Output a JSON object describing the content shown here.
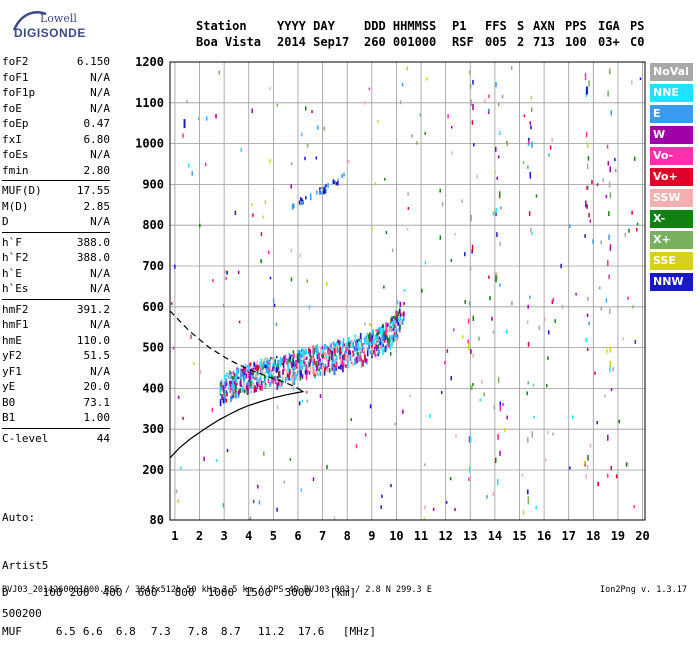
{
  "logo": {
    "line1": "Lowell",
    "line2": "DIGISONDE"
  },
  "header": {
    "row1": [
      "Station",
      "YYYY DAY",
      "DDD HHMMSS",
      "P1",
      "FFS",
      "S",
      "AXN",
      "PPS",
      "IGA",
      "PS"
    ],
    "row2": [
      "Boa Vista",
      "2014 Sep17",
      "260 001000",
      "RSF",
      "005",
      "2",
      "713",
      "100",
      "03+",
      "C0"
    ]
  },
  "params": {
    "group1": [
      {
        "name": "foF2",
        "value": "6.150"
      },
      {
        "name": "foF1",
        "value": "N/A"
      },
      {
        "name": "foF1p",
        "value": "N/A"
      },
      {
        "name": "foE",
        "value": "N/A"
      },
      {
        "name": "foEp",
        "value": "0.47"
      },
      {
        "name": "fxI",
        "value": "6.80"
      },
      {
        "name": "foEs",
        "value": "N/A"
      },
      {
        "name": "fmin",
        "value": "2.80"
      }
    ],
    "group2": [
      {
        "name": "MUF(D)",
        "value": "17.55"
      },
      {
        "name": "M(D)",
        "value": "2.85"
      },
      {
        "name": "D",
        "value": "N/A"
      }
    ],
    "group3": [
      {
        "name": "h`F",
        "value": "388.0"
      },
      {
        "name": "h`F2",
        "value": "388.0"
      },
      {
        "name": "h`E",
        "value": "N/A"
      },
      {
        "name": "h`Es",
        "value": "N/A"
      }
    ],
    "group4": [
      {
        "name": "hmF2",
        "value": "391.2"
      },
      {
        "name": "hmF1",
        "value": "N/A"
      },
      {
        "name": "hmE",
        "value": "110.0"
      },
      {
        "name": "yF2",
        "value": "51.5"
      },
      {
        "name": "yF1",
        "value": "N/A"
      },
      {
        "name": "yE",
        "value": "20.0"
      },
      {
        "name": "B0",
        "value": "73.1"
      },
      {
        "name": "B1",
        "value": "1.00"
      }
    ],
    "group5": [
      {
        "name": "C-level",
        "value": "44"
      }
    ]
  },
  "auto": [
    "Auto:",
    "Artist5",
    "500200"
  ],
  "legend": [
    {
      "label": "NoVal",
      "color": "#a8a8a8"
    },
    {
      "label": "NNE",
      "color": "#22e0ff"
    },
    {
      "label": "E",
      "color": "#3a9cf0"
    },
    {
      "label": "W",
      "color": "#a000a8"
    },
    {
      "label": "Vo-",
      "color": "#ff2fae"
    },
    {
      "label": "Vo+",
      "color": "#e0002a"
    },
    {
      "label": "SSW",
      "color": "#f4b0b0"
    },
    {
      "label": "X-",
      "color": "#108010"
    },
    {
      "label": "X+",
      "color": "#78b060"
    },
    {
      "label": "SSE",
      "color": "#d8d020"
    },
    {
      "label": "NNW",
      "color": "#1818c8"
    }
  ],
  "muf_table": {
    "d_label": "D",
    "d_values": [
      "100",
      "200",
      "400",
      "600",
      "800",
      "1000",
      "1500",
      "3000",
      "[km]"
    ],
    "muf_label": "MUF",
    "muf_values": [
      "6.5",
      "6.6",
      "6.8",
      "7.3",
      "7.8",
      "8.7",
      "11.2",
      "17.6",
      "[MHz]"
    ]
  },
  "footer": {
    "left": "BVJ03_2014260001000.RSF / 384fx512h 50 kHz 2.5 km / DPS-4D BVJ03 003 / 2.8 N 299.3 E",
    "right": "Ion2Png v. 1.3.17"
  },
  "chart_data": {
    "type": "scatter",
    "title": "",
    "xlabel": "",
    "ylabel": "",
    "xlim": [
      0.8,
      20.1
    ],
    "ylim": [
      80,
      1200
    ],
    "xticks": [
      1,
      2,
      3,
      4,
      5,
      6,
      7,
      8,
      9,
      10,
      11,
      12,
      13,
      14,
      15,
      16,
      17,
      18,
      19,
      20
    ],
    "yticks": [
      80,
      200,
      300,
      400,
      500,
      600,
      700,
      800,
      900,
      1000,
      1100,
      1200
    ],
    "grid": true,
    "f2_trace": {
      "description_free": true,
      "x": [
        2.8,
        3.0,
        3.5,
        4.0,
        4.5,
        5.0,
        5.5,
        6.0,
        6.5,
        7.0,
        7.5,
        8.0,
        8.5,
        9.0,
        9.5,
        10.0,
        10.3
      ],
      "y": [
        390,
        395,
        405,
        415,
        425,
        432,
        440,
        448,
        455,
        463,
        470,
        478,
        487,
        497,
        515,
        545,
        600
      ]
    },
    "second_hop": {
      "x": [
        5.7,
        6.0,
        6.5,
        7.0,
        7.5,
        8.0
      ],
      "y": [
        850,
        860,
        875,
        890,
        910,
        940
      ]
    },
    "profile_solid": {
      "x": [
        0.8,
        1.2,
        1.6,
        2.0,
        2.4,
        2.8,
        3.2,
        3.6,
        4.0,
        4.5,
        5.0,
        5.5,
        6.0,
        6.2,
        6.1
      ],
      "y": [
        230,
        255,
        275,
        292,
        308,
        323,
        336,
        348,
        358,
        368,
        377,
        384,
        390,
        392,
        396
      ]
    },
    "profile_dashed": {
      "x": [
        0.8,
        1.2,
        1.6,
        2.0,
        2.4,
        2.8,
        3.2,
        3.6,
        4.0,
        4.5,
        5.0,
        5.5,
        6.0,
        6.1
      ],
      "y": [
        590,
        565,
        540,
        520,
        500,
        485,
        470,
        458,
        447,
        435,
        424,
        414,
        400,
        396
      ]
    }
  }
}
